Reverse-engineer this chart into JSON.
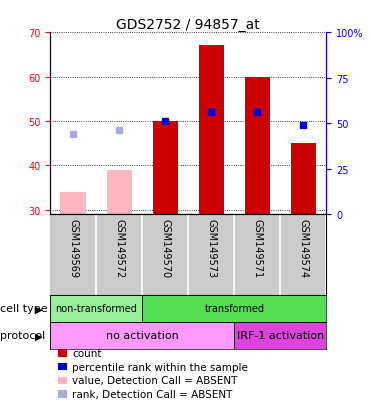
{
  "title": "GDS2752 / 94857_at",
  "samples": [
    "GSM149569",
    "GSM149572",
    "GSM149570",
    "GSM149573",
    "GSM149571",
    "GSM149574"
  ],
  "count_values": [
    null,
    null,
    50,
    67,
    60,
    45
  ],
  "count_absent": [
    34,
    39,
    null,
    null,
    null,
    null
  ],
  "percentile_values": [
    null,
    null,
    50,
    52,
    52,
    49
  ],
  "percentile_absent": [
    47,
    48,
    null,
    null,
    null,
    null
  ],
  "ylim_left": [
    29,
    70
  ],
  "ylim_right": [
    0,
    100
  ],
  "yticks_left": [
    30,
    40,
    50,
    60,
    70
  ],
  "yticks_right": [
    0,
    25,
    50,
    75,
    100
  ],
  "cell_type_groups": [
    {
      "label": "non-transformed",
      "span": [
        0,
        2
      ],
      "color": "#99EE99"
    },
    {
      "label": "transformed",
      "span": [
        2,
        6
      ],
      "color": "#55DD55"
    }
  ],
  "protocol_groups": [
    {
      "label": "no activation",
      "span": [
        0,
        4
      ],
      "color": "#FF99FF"
    },
    {
      "label": "IRF-1 activation",
      "span": [
        4,
        6
      ],
      "color": "#DD44DD"
    }
  ],
  "bar_color_present": "#CC0000",
  "bar_color_absent": "#FFB6C1",
  "dot_color_present": "#0000CC",
  "dot_color_absent": "#AAAADD",
  "bar_width": 0.55,
  "title_fontsize": 10,
  "tick_fontsize": 7,
  "label_fontsize": 8,
  "legend_fontsize": 7.5,
  "sample_label_fontsize": 7
}
